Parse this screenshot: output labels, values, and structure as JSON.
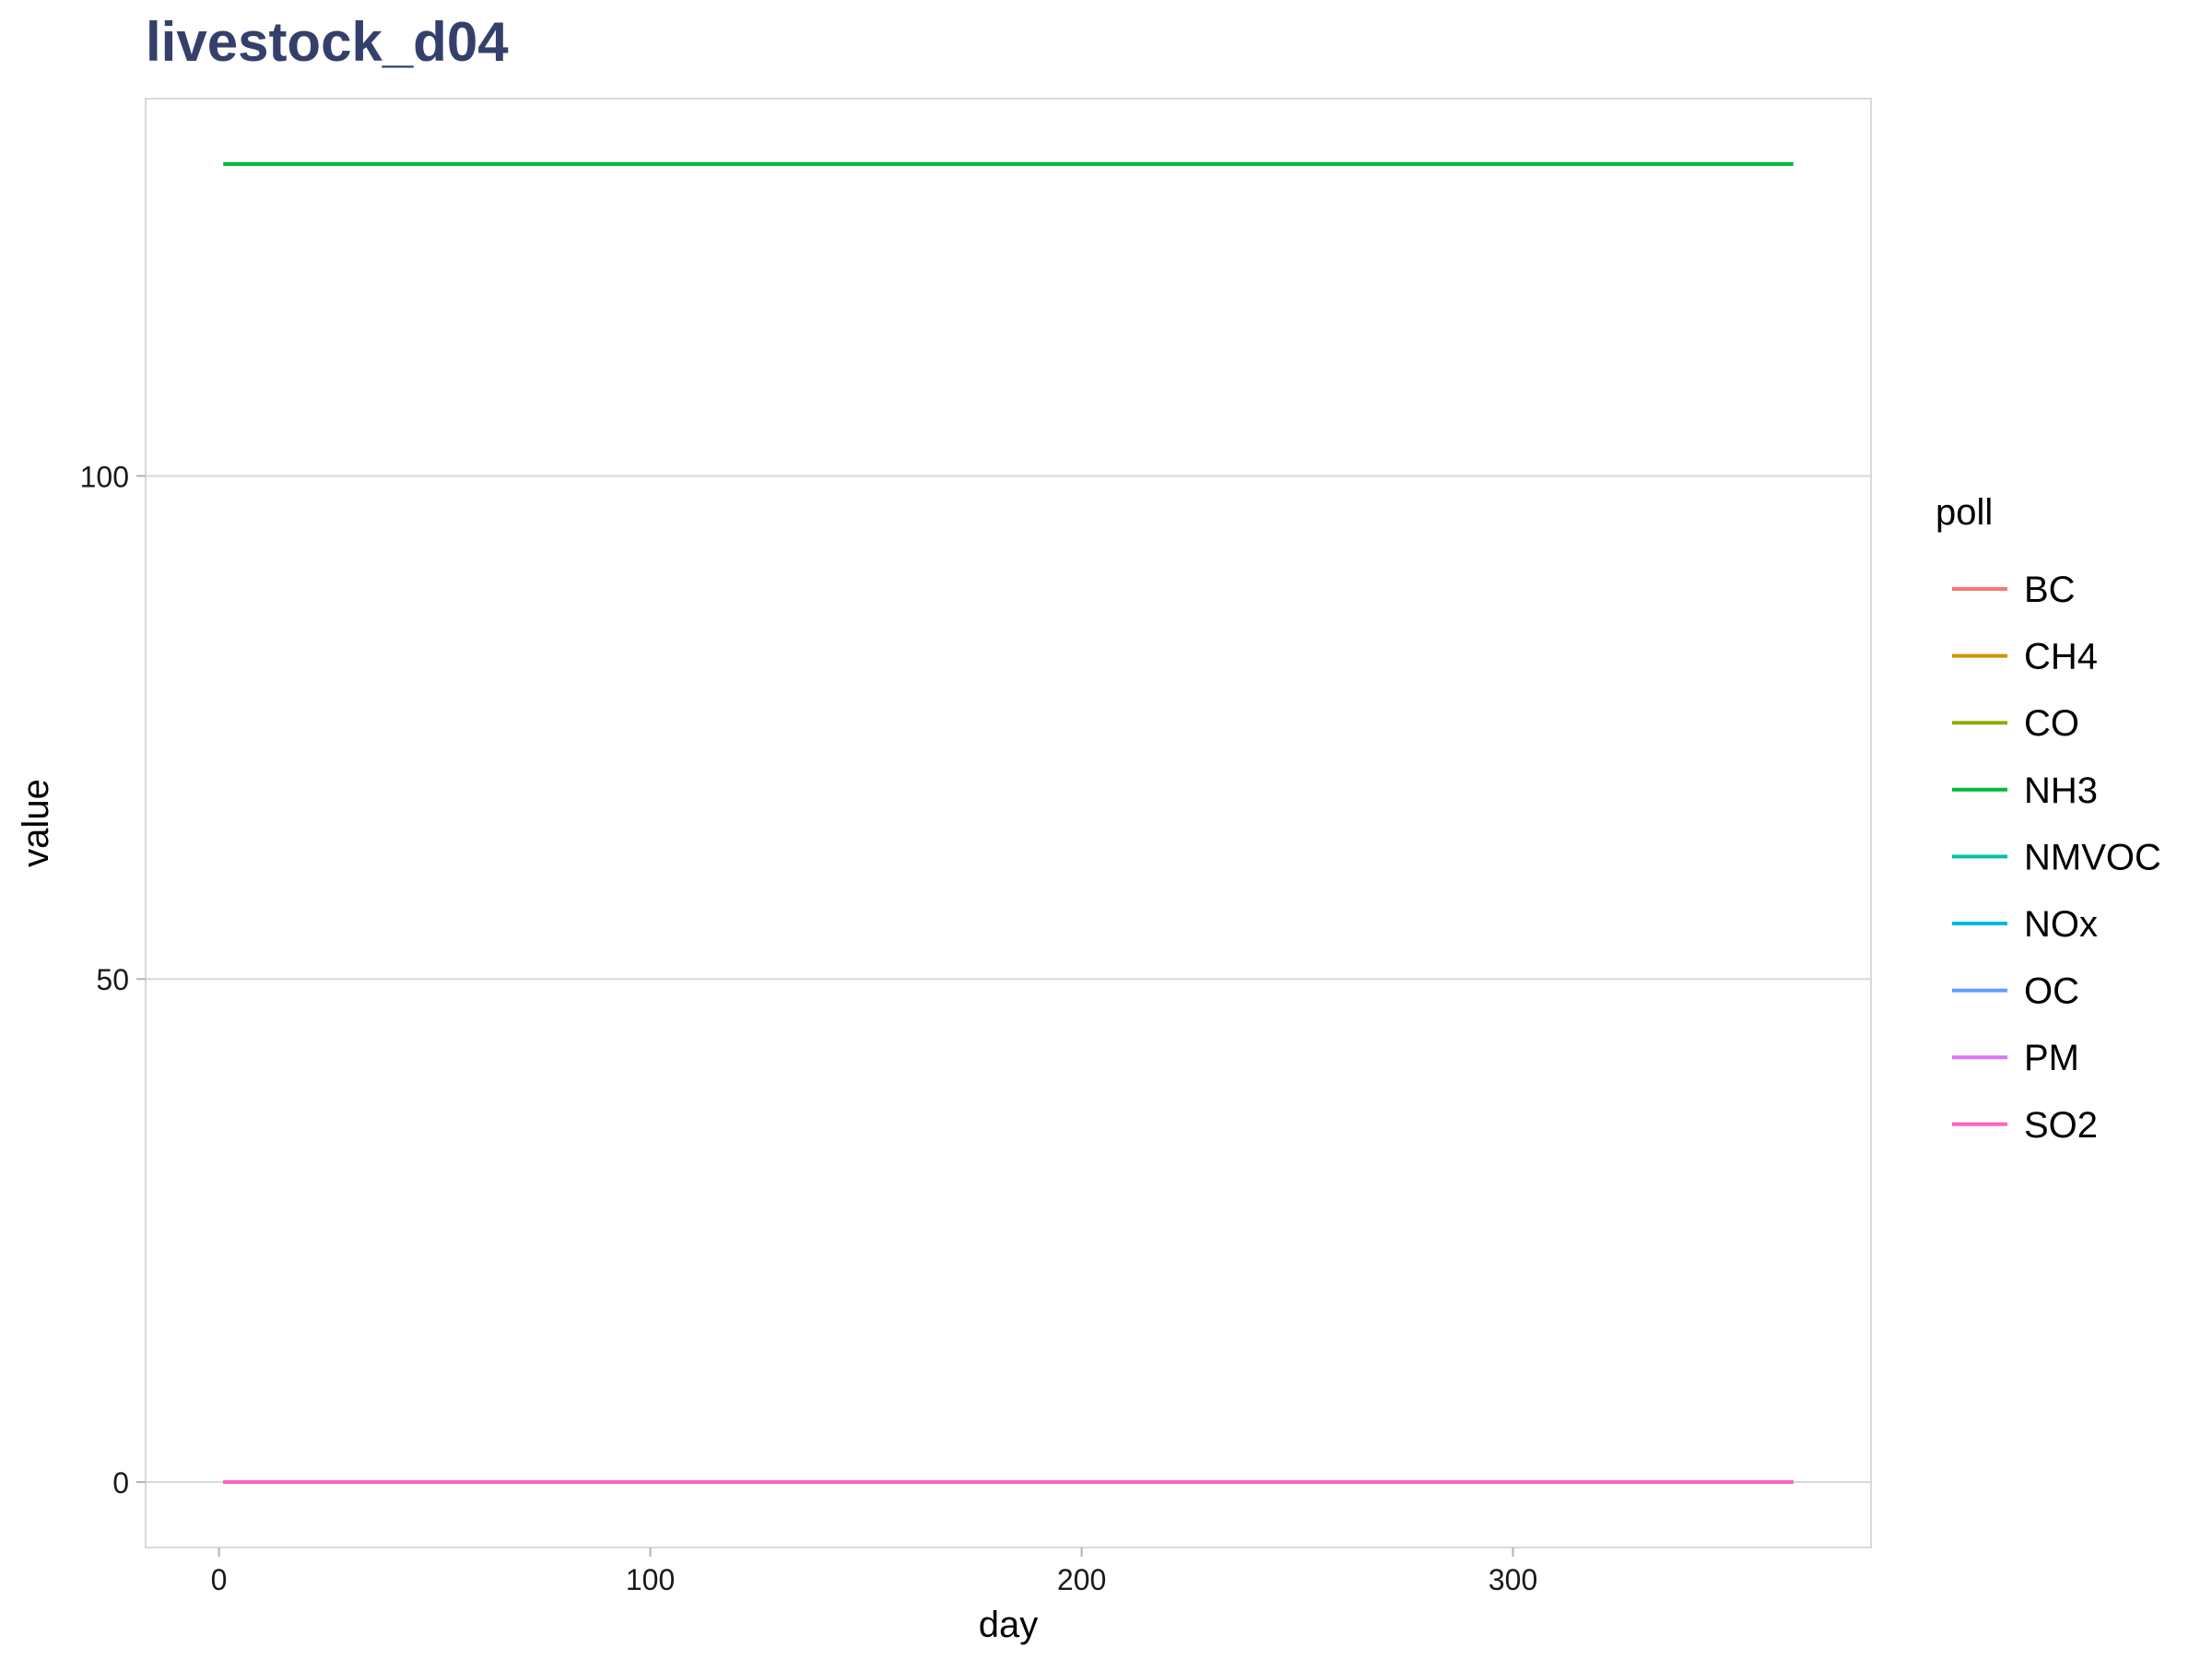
{
  "chart_data": {
    "type": "line",
    "title": "livestock_d04",
    "xlabel": "day",
    "ylabel": "value",
    "xlim": [
      -17,
      383
    ],
    "ylim": [
      -6.5,
      137.5
    ],
    "x_ticks": [
      0,
      100,
      200,
      300
    ],
    "y_ticks": [
      0,
      50,
      100
    ],
    "x": [
      1,
      365
    ],
    "grid": "major horizontal gridlines",
    "legend": {
      "title": "poll",
      "placement": "right"
    },
    "series": [
      {
        "name": "BC",
        "color": "#F8766D",
        "values": [
          0,
          0
        ]
      },
      {
        "name": "CH4",
        "color": "#D39200",
        "values": [
          0,
          0
        ]
      },
      {
        "name": "CO",
        "color": "#93AA00",
        "values": [
          0,
          0
        ]
      },
      {
        "name": "NH3",
        "color": "#00BA38",
        "values": [
          131,
          131
        ]
      },
      {
        "name": "NMVOC",
        "color": "#00C19F",
        "values": [
          0,
          0
        ]
      },
      {
        "name": "NOx",
        "color": "#00B9E3",
        "values": [
          0,
          0
        ]
      },
      {
        "name": "OC",
        "color": "#619CFF",
        "values": [
          0,
          0
        ]
      },
      {
        "name": "PM",
        "color": "#DB72FB",
        "values": [
          0,
          0
        ]
      },
      {
        "name": "SO2",
        "color": "#FF61C3",
        "values": [
          0,
          0
        ]
      }
    ]
  }
}
